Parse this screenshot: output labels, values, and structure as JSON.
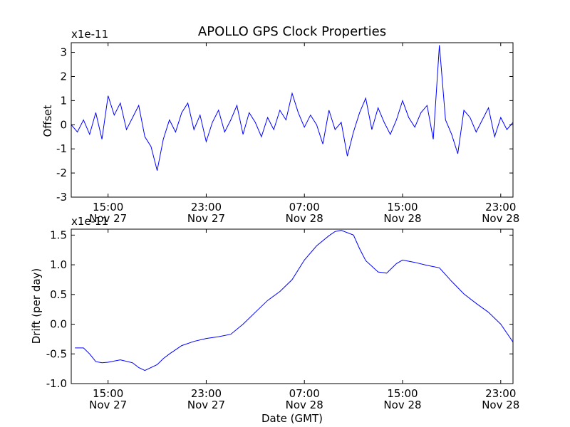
{
  "chart_data": [
    {
      "type": "line",
      "title": "APOLLO GPS Clock Properties",
      "ylabel": "Offset",
      "xlabel": "",
      "y_multiplier": "x1e-11",
      "ylim": [
        -3,
        3.4
      ],
      "y_ticks": [
        "3",
        "2",
        "1",
        "0",
        "-1",
        "-2",
        "-3"
      ],
      "x_ticks": [
        {
          "time": "15:00",
          "date": "Nov 27"
        },
        {
          "time": "23:00",
          "date": "Nov 27"
        },
        {
          "time": "07:00",
          "date": "Nov 28"
        },
        {
          "time": "15:00",
          "date": "Nov 28"
        },
        {
          "time": "23:00",
          "date": "Nov 28"
        }
      ],
      "line_color": "#0000ff",
      "grid": false,
      "series": [
        {
          "x": [
            12.0,
            12.5,
            13.0,
            13.5,
            14.0,
            14.5,
            15.0,
            15.5,
            16.0,
            16.5,
            17.0,
            17.5,
            18.0,
            18.5,
            19.0,
            19.5,
            20.0,
            20.5,
            21.0,
            21.5,
            22.0,
            22.5,
            23.0,
            23.5,
            24.0,
            24.5,
            25.0,
            25.5,
            26.0,
            26.5,
            27.0,
            27.5,
            28.0,
            28.5,
            29.0,
            29.5,
            30.0,
            30.5,
            31.0,
            31.5,
            32.0,
            32.5,
            33.0,
            33.5,
            34.0,
            34.5,
            35.0,
            35.5,
            36.0,
            36.5,
            37.0,
            37.5,
            38.0,
            38.5,
            39.0,
            39.5,
            40.0,
            40.5,
            41.0,
            41.5,
            42.0,
            42.5,
            43.0,
            43.5,
            44.0,
            44.5,
            45.0,
            45.5,
            46.0,
            46.5,
            47.0,
            47.5,
            48.0
          ],
          "y": [
            0.0,
            -0.3,
            0.2,
            -0.4,
            0.5,
            -0.6,
            1.2,
            0.4,
            0.9,
            -0.2,
            0.3,
            0.8,
            -0.5,
            -0.9,
            -1.9,
            -0.6,
            0.2,
            -0.3,
            0.5,
            0.9,
            -0.2,
            0.4,
            -0.7,
            0.1,
            0.6,
            -0.3,
            0.2,
            0.8,
            -0.4,
            0.5,
            0.1,
            -0.5,
            0.3,
            -0.2,
            0.6,
            0.2,
            1.3,
            0.5,
            -0.1,
            0.4,
            0.0,
            -0.8,
            0.6,
            -0.2,
            0.1,
            -1.3,
            -0.3,
            0.5,
            1.1,
            -0.2,
            0.7,
            0.1,
            -0.4,
            0.2,
            1.0,
            0.3,
            -0.1,
            0.5,
            0.8,
            -0.6,
            3.3,
            0.2,
            -0.4,
            -1.2,
            0.6,
            0.3,
            -0.3,
            0.2,
            0.7,
            -0.5,
            0.3,
            -0.2,
            0.1
          ]
        }
      ]
    },
    {
      "type": "line",
      "title": "",
      "ylabel": "Drift (per day)",
      "xlabel": "Date (GMT)",
      "y_multiplier": "x1e-11",
      "ylim": [
        -1.0,
        1.6
      ],
      "y_ticks": [
        "1.5",
        "1.0",
        "0.5",
        "0.0",
        "-0.5",
        "-1.0"
      ],
      "x_ticks": [
        {
          "time": "15:00",
          "date": "Nov 27"
        },
        {
          "time": "23:00",
          "date": "Nov 27"
        },
        {
          "time": "07:00",
          "date": "Nov 28"
        },
        {
          "time": "15:00",
          "date": "Nov 28"
        },
        {
          "time": "23:00",
          "date": "Nov 28"
        }
      ],
      "line_color": "#0000ff",
      "grid": false,
      "series": [
        {
          "x": [
            12.3,
            13.0,
            13.5,
            14.0,
            14.5,
            15.0,
            16.0,
            17.0,
            17.5,
            18.0,
            19.0,
            19.5,
            20.0,
            21.0,
            22.0,
            23.0,
            24.0,
            25.0,
            26.0,
            27.0,
            28.0,
            29.0,
            30.0,
            31.0,
            32.0,
            33.0,
            33.5,
            34.0,
            35.0,
            35.5,
            36.0,
            37.0,
            37.7,
            38.5,
            39.0,
            40.0,
            41.0,
            42.0,
            43.0,
            44.0,
            45.0,
            46.0,
            47.0,
            48.0
          ],
          "y": [
            -0.4,
            -0.4,
            -0.5,
            -0.63,
            -0.65,
            -0.64,
            -0.6,
            -0.65,
            -0.73,
            -0.78,
            -0.68,
            -0.58,
            -0.5,
            -0.36,
            -0.29,
            -0.24,
            -0.21,
            -0.17,
            0.0,
            0.2,
            0.4,
            0.55,
            0.75,
            1.08,
            1.32,
            1.49,
            1.56,
            1.58,
            1.5,
            1.27,
            1.07,
            0.88,
            0.86,
            1.02,
            1.08,
            1.04,
            0.99,
            0.95,
            0.72,
            0.51,
            0.35,
            0.2,
            0.0,
            -0.3
          ]
        }
      ]
    }
  ]
}
